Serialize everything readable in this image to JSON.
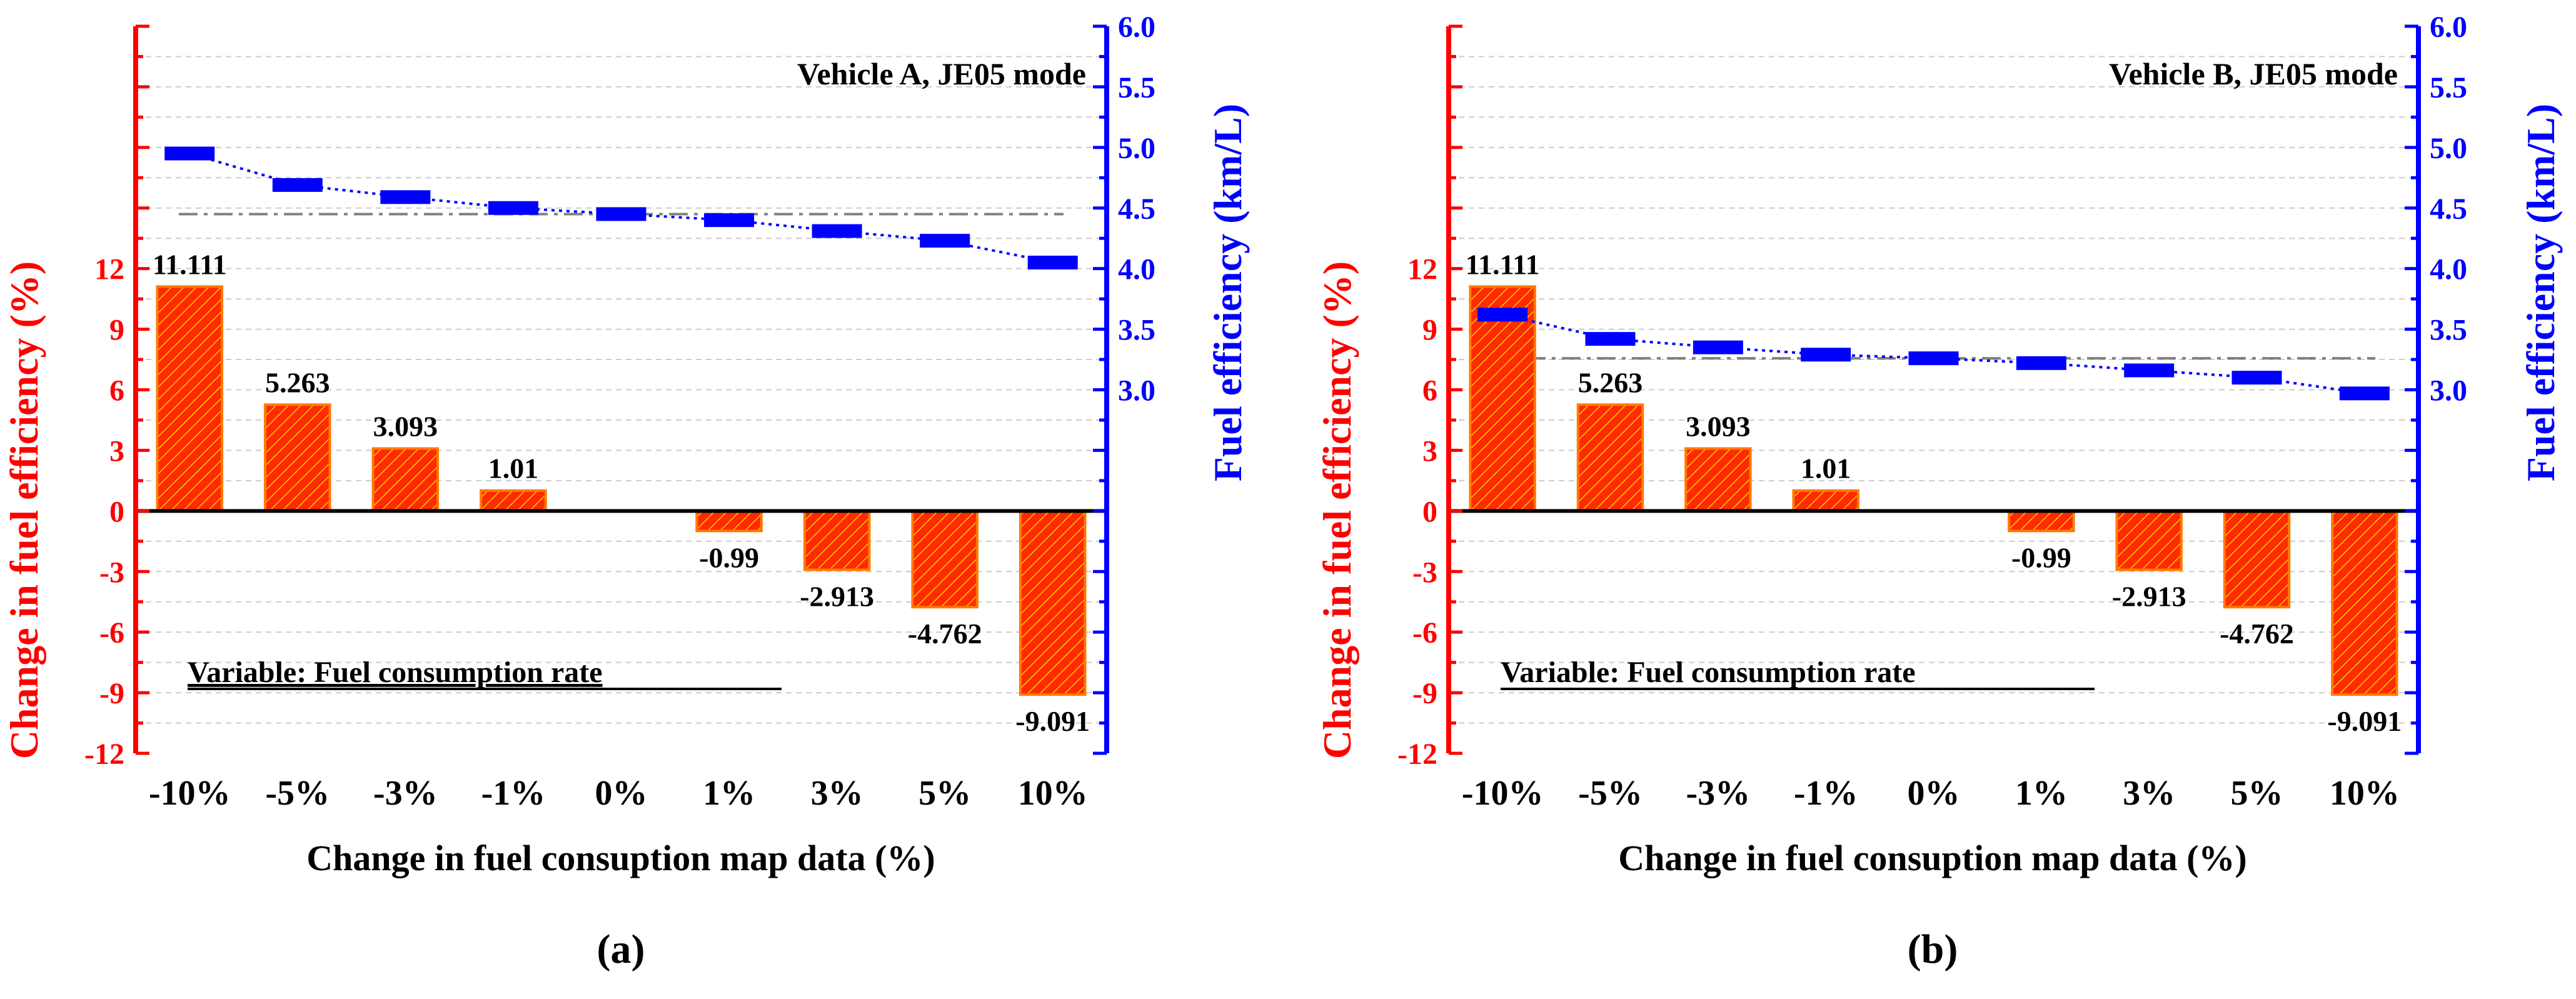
{
  "colors": {
    "left_axis": "#ff0000",
    "right_axis": "#0000ff",
    "bar_fill": "#ff2a00",
    "bar_hatch": "#ffd000",
    "bar_stroke": "#ff7a00",
    "baseline": "#000000",
    "grid": "#cccccc",
    "reference_line": "#808080",
    "series_marker": "#0000ff"
  },
  "chart_data": [
    {
      "panel_label": "(a)",
      "type": "bar+line",
      "title": "Vehicle A, JE05 mode",
      "annotation": "Variable: Fuel consumption rate",
      "xlabel": "Change in fuel consuption map data (%)",
      "ylabel_left": "Change in fuel efficiency (%)",
      "ylabel_right": "Fuel efficiency (km/L)",
      "categories": [
        "-10%",
        "-5%",
        "-3%",
        "-1%",
        "0%",
        "1%",
        "3%",
        "5%",
        "10%"
      ],
      "left_ylim": [
        -12,
        24
      ],
      "left_ticks": [
        "12",
        "9",
        "6",
        "3",
        "0",
        "-3",
        "-6",
        "-9",
        "-12"
      ],
      "right_ylim": [
        0,
        6
      ],
      "right_ticks": [
        "3.0",
        "3.5",
        "4.0",
        "4.5",
        "5.0",
        "5.5",
        "6.0"
      ],
      "bar_values": [
        11.111,
        5.263,
        3.093,
        1.01,
        0,
        -0.99,
        -2.913,
        -4.762,
        -9.091
      ],
      "bar_labels": [
        "11.111",
        "5.263",
        "3.093",
        "1.01",
        "",
        "-0.99",
        "-2.913",
        "-4.762",
        "-9.091"
      ],
      "line_values": [
        4.95,
        4.69,
        4.59,
        4.5,
        4.45,
        4.4,
        4.31,
        4.23,
        4.05
      ],
      "reference_value": 4.45
    },
    {
      "panel_label": "(b)",
      "type": "bar+line",
      "title": "Vehicle B, JE05 mode",
      "annotation": "Variable: Fuel consumption rate",
      "xlabel": "Change in fuel consuption map data (%)",
      "ylabel_left": "Change in fuel efficiency (%)",
      "ylabel_right": "Fuel efficiency (km/L)",
      "categories": [
        "-10%",
        "-5%",
        "-3%",
        "-1%",
        "0%",
        "1%",
        "3%",
        "5%",
        "10%"
      ],
      "left_ylim": [
        -12,
        24
      ],
      "left_ticks": [
        "12",
        "9",
        "6",
        "3",
        "0",
        "-3",
        "-6",
        "-9",
        "-12"
      ],
      "right_ylim": [
        0,
        6
      ],
      "right_ticks": [
        "3.0",
        "3.5",
        "4.0",
        "4.5",
        "5.0",
        "5.5",
        "6.0"
      ],
      "bar_values": [
        11.111,
        5.263,
        3.093,
        1.01,
        0,
        -0.99,
        -2.913,
        -4.762,
        -9.091
      ],
      "bar_labels": [
        "11.111",
        "5.263",
        "3.093",
        "1.01",
        "",
        "-0.99",
        "-2.913",
        "-4.762",
        "-9.091"
      ],
      "line_values": [
        3.62,
        3.42,
        3.35,
        3.29,
        3.26,
        3.22,
        3.16,
        3.1,
        2.97
      ],
      "reference_value": 3.26
    }
  ]
}
